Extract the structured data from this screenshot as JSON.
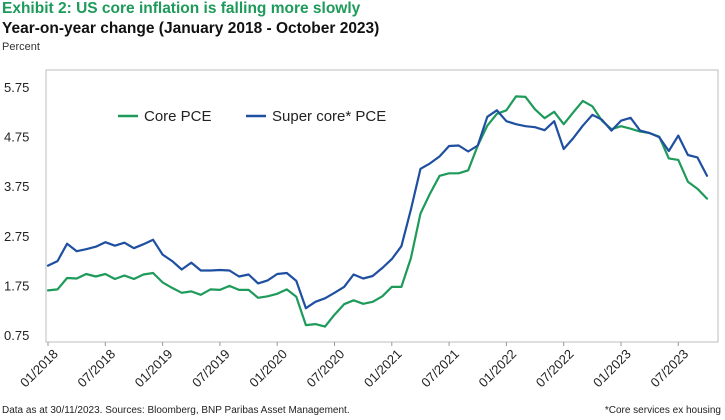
{
  "title": "Exhibit 2: US core inflation is falling more slowly",
  "subtitle": "Year-on-year change (January 2018 - October 2023)",
  "unit_label": "Percent",
  "footer_left": "Data as at 30/11/2023. Sources: Bloomberg, BNP Paribas Asset Management.",
  "footer_right": "*Core services ex housing",
  "colors": {
    "core_pce": "#1e9a5a",
    "super_core_pce": "#1f4fa0",
    "title": "#1e9a5a"
  },
  "chart_data": {
    "type": "line",
    "title": "Exhibit 2: US core inflation is falling more slowly",
    "subtitle": "Year-on-year change (January 2018 - October 2023)",
    "ylabel": "Percent",
    "xlabel": "",
    "ylim": [
      0.75,
      6.0
    ],
    "yticks": [
      "5.75",
      "4.75",
      "3.75",
      "2.75",
      "1.75",
      "0.75"
    ],
    "ytick_values": [
      5.75,
      4.75,
      3.75,
      2.75,
      1.75,
      0.75
    ],
    "xtick_labels": [
      "01/2018",
      "07/2018",
      "01/2019",
      "07/2019",
      "01/2020",
      "07/2020",
      "01/2021",
      "07/2021",
      "01/2022",
      "07/2022",
      "01/2023",
      "07/2023"
    ],
    "xtick_months": [
      "2018-01",
      "2018-07",
      "2019-01",
      "2019-07",
      "2020-01",
      "2020-07",
      "2021-01",
      "2021-07",
      "2022-01",
      "2022-07",
      "2023-01",
      "2023-07"
    ],
    "x_start": "2018-01",
    "grid": false,
    "legend_position": "top-left",
    "series": [
      {
        "name": "Core PCE",
        "color": "#1e9a5a",
        "values": [
          1.65,
          1.67,
          1.9,
          1.89,
          1.98,
          1.93,
          1.98,
          1.88,
          1.95,
          1.88,
          1.97,
          2.0,
          1.81,
          1.7,
          1.6,
          1.63,
          1.56,
          1.67,
          1.66,
          1.74,
          1.66,
          1.66,
          1.5,
          1.53,
          1.58,
          1.67,
          1.52,
          0.95,
          0.97,
          0.92,
          1.16,
          1.37,
          1.45,
          1.38,
          1.42,
          1.53,
          1.72,
          1.72,
          2.3,
          3.2,
          3.6,
          3.96,
          4.01,
          4.01,
          4.07,
          4.57,
          4.97,
          5.21,
          5.28,
          5.56,
          5.55,
          5.3,
          5.12,
          5.25,
          5.0,
          5.24,
          5.47,
          5.36,
          5.07,
          4.9,
          4.96,
          4.91,
          4.85,
          4.82,
          4.75,
          4.31,
          4.28,
          3.84,
          3.7,
          3.5
        ]
      },
      {
        "name": "Super core* PCE",
        "color": "#1f4fa0",
        "values": [
          2.15,
          2.24,
          2.59,
          2.44,
          2.48,
          2.53,
          2.62,
          2.55,
          2.61,
          2.5,
          2.58,
          2.67,
          2.37,
          2.24,
          2.07,
          2.21,
          2.05,
          2.05,
          2.06,
          2.05,
          1.93,
          1.97,
          1.79,
          1.85,
          1.98,
          2.0,
          1.84,
          1.29,
          1.42,
          1.49,
          1.6,
          1.72,
          1.97,
          1.89,
          1.94,
          2.1,
          2.28,
          2.54,
          3.28,
          4.1,
          4.21,
          4.35,
          4.56,
          4.57,
          4.45,
          4.57,
          5.15,
          5.28,
          5.06,
          5.0,
          4.96,
          4.94,
          4.88,
          5.06,
          4.5,
          4.72,
          4.97,
          5.19,
          5.09,
          4.87,
          5.07,
          5.13,
          4.87,
          4.82,
          4.74,
          4.46,
          4.77,
          4.38,
          4.33,
          3.96
        ]
      }
    ]
  }
}
